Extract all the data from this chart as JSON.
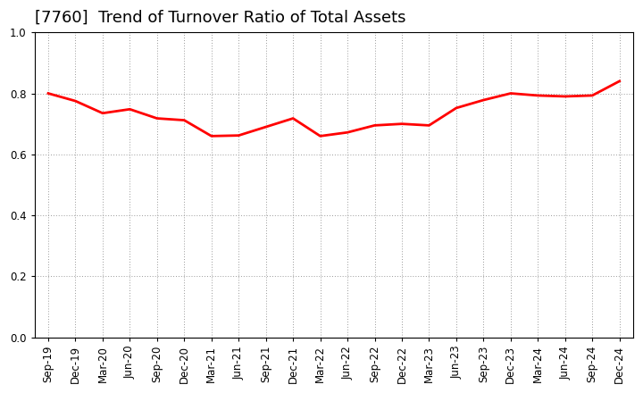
{
  "title": "[7760]  Trend of Turnover Ratio of Total Assets",
  "labels": [
    "Sep-19",
    "Dec-19",
    "Mar-20",
    "Jun-20",
    "Sep-20",
    "Dec-20",
    "Mar-21",
    "Jun-21",
    "Sep-21",
    "Dec-21",
    "Mar-22",
    "Jun-22",
    "Sep-22",
    "Dec-22",
    "Mar-23",
    "Jun-23",
    "Sep-23",
    "Dec-23",
    "Mar-24",
    "Jun-24",
    "Sep-24",
    "Dec-24"
  ],
  "values": [
    0.8,
    0.775,
    0.735,
    0.748,
    0.718,
    0.712,
    0.66,
    0.662,
    0.69,
    0.718,
    0.66,
    0.672,
    0.695,
    0.7,
    0.695,
    0.752,
    0.778,
    0.8,
    0.793,
    0.79,
    0.793,
    0.84
  ],
  "line_color": "#ff0000",
  "line_width": 2.0,
  "ylim": [
    0.0,
    1.0
  ],
  "yticks": [
    0.0,
    0.2,
    0.4,
    0.6,
    0.8,
    1.0
  ],
  "background_color": "#ffffff",
  "plot_bg_color": "#ffffff",
  "grid_color": "#999999",
  "title_fontsize": 13,
  "tick_fontsize": 8.5,
  "title_color": "#000000",
  "spine_color": "#000000"
}
